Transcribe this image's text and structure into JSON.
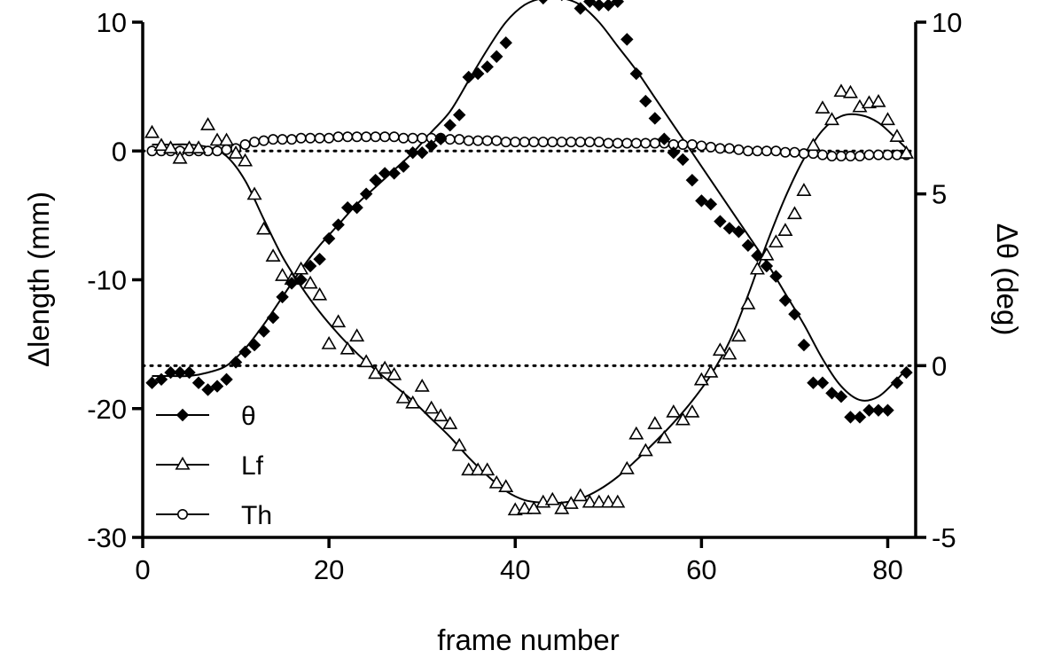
{
  "chart_data": {
    "type": "scatter",
    "title": "",
    "xlabel": "frame number",
    "ylabel_left": "Δlength (mm)",
    "ylabel_right": "Δθ (deg)",
    "xlim": [
      0,
      83
    ],
    "ylim_left": [
      -30,
      10
    ],
    "ylim_right": [
      -5,
      10
    ],
    "xticks": [
      "0",
      "20",
      "40",
      "60",
      "80"
    ],
    "yticks_left": [
      "10",
      "0",
      "-10",
      "-20",
      "-30"
    ],
    "yticks_right": [
      "10",
      "5",
      "0",
      "-5"
    ],
    "grid": false,
    "legend": {
      "position": "bottom-left",
      "entries": [
        "θ",
        "Lf",
        "Th"
      ]
    },
    "reference_lines": [
      {
        "axis": "left",
        "y": 0
      },
      {
        "axis": "right",
        "y": 0
      }
    ],
    "series": [
      {
        "name": "θ",
        "axis": "right",
        "marker": "diamond-filled",
        "x": [
          1,
          2,
          3,
          4,
          5,
          6,
          7,
          8,
          9,
          10,
          11,
          12,
          13,
          14,
          15,
          16,
          17,
          18,
          19,
          20,
          21,
          22,
          23,
          24,
          25,
          26,
          27,
          28,
          29,
          30,
          31,
          32,
          33,
          34,
          35,
          36,
          37,
          38,
          39,
          40,
          41,
          42,
          43,
          44,
          45,
          46,
          47,
          48,
          49,
          50,
          51,
          52,
          53,
          54,
          55,
          56,
          57,
          58,
          59,
          60,
          61,
          62,
          63,
          64,
          65,
          66,
          67,
          68,
          69,
          70,
          71,
          72,
          73,
          74,
          75,
          76,
          77,
          78,
          79,
          80,
          81,
          82
        ],
        "y": [
          -0.5,
          -0.4,
          -0.2,
          -0.2,
          -0.2,
          -0.5,
          -0.7,
          -0.6,
          -0.4,
          0.1,
          0.4,
          0.6,
          1.0,
          1.4,
          2.0,
          2.4,
          2.5,
          2.9,
          3.1,
          3.7,
          4.1,
          4.6,
          4.6,
          5.0,
          5.4,
          5.6,
          5.6,
          5.8,
          6.2,
          6.2,
          6.4,
          6.6,
          7.0,
          7.3,
          8.4,
          8.5,
          8.7,
          9.0,
          9.4,
          11.3,
          11.1,
          11.1,
          10.7,
          10.9,
          10.8,
          10.8,
          10.4,
          10.6,
          10.5,
          10.5,
          10.6,
          9.5,
          8.5,
          7.7,
          7.2,
          6.6,
          6.2,
          6.0,
          5.4,
          4.8,
          4.7,
          4.2,
          4.0,
          3.9,
          3.5,
          3.2,
          2.9,
          2.6,
          1.9,
          1.5,
          0.6,
          -0.5,
          -0.5,
          -0.8,
          -0.9,
          -1.5,
          -1.5,
          -1.3,
          -1.3,
          -1.3,
          -0.5,
          -0.2
        ]
      },
      {
        "name": "Lf",
        "axis": "left",
        "marker": "triangle-open",
        "x": [
          1,
          2,
          3,
          4,
          5,
          6,
          7,
          8,
          9,
          10,
          11,
          12,
          13,
          14,
          15,
          16,
          17,
          18,
          19,
          20,
          21,
          22,
          23,
          24,
          25,
          26,
          27,
          28,
          29,
          30,
          31,
          32,
          33,
          34,
          35,
          36,
          37,
          38,
          39,
          40,
          41,
          42,
          43,
          44,
          45,
          46,
          47,
          48,
          49,
          50,
          51,
          52,
          53,
          54,
          55,
          56,
          57,
          58,
          59,
          60,
          61,
          62,
          63,
          64,
          65,
          66,
          67,
          68,
          69,
          70,
          71,
          72,
          73,
          74,
          75,
          76,
          77,
          78,
          79,
          80,
          81,
          82
        ],
        "y": [
          1.4,
          0.4,
          0.2,
          -0.6,
          0.2,
          0.2,
          2.0,
          0.8,
          0.8,
          -0.2,
          -0.8,
          -3.4,
          -6.1,
          -8.2,
          -9.7,
          -10.0,
          -9.2,
          -10.3,
          -11.2,
          -15.0,
          -13.3,
          -15.4,
          -14.4,
          -16.4,
          -17.3,
          -16.9,
          -17.4,
          -19.2,
          -19.6,
          -18.3,
          -20.0,
          -20.6,
          -21.2,
          -22.9,
          -24.8,
          -24.8,
          -24.8,
          -25.8,
          -26.1,
          -27.9,
          -27.8,
          -27.8,
          -27.3,
          -27.1,
          -27.8,
          -27.4,
          -26.8,
          -27.3,
          -27.3,
          -27.3,
          -27.3,
          -24.7,
          -22.0,
          -23.3,
          -21.2,
          -22.3,
          -20.3,
          -20.9,
          -20.3,
          -17.8,
          -17.2,
          -15.5,
          -15.8,
          -14.4,
          -11.9,
          -9.2,
          -8.1,
          -7.1,
          -6.2,
          -4.9,
          -3.1,
          0.4,
          3.3,
          2.4,
          4.6,
          4.5,
          3.4,
          3.7,
          3.8,
          2.4,
          1.1,
          -0.2
        ]
      },
      {
        "name": "Th",
        "axis": "left",
        "marker": "circle-open",
        "x": [
          1,
          2,
          3,
          4,
          5,
          6,
          7,
          8,
          9,
          10,
          11,
          12,
          13,
          14,
          15,
          16,
          17,
          18,
          19,
          20,
          21,
          22,
          23,
          24,
          25,
          26,
          27,
          28,
          29,
          30,
          31,
          32,
          33,
          34,
          35,
          36,
          37,
          38,
          39,
          40,
          41,
          42,
          43,
          44,
          45,
          46,
          47,
          48,
          49,
          50,
          51,
          52,
          53,
          54,
          55,
          56,
          57,
          58,
          59,
          60,
          61,
          62,
          63,
          64,
          65,
          66,
          67,
          68,
          69,
          70,
          71,
          72,
          73,
          74,
          75,
          76,
          77,
          78,
          79,
          80,
          81,
          82
        ],
        "y": [
          0.0,
          0.0,
          0.0,
          0.0,
          0.0,
          0.0,
          0.0,
          0.0,
          0.1,
          0.2,
          0.5,
          0.7,
          0.8,
          0.9,
          0.9,
          0.9,
          1.0,
          1.0,
          1.0,
          1.0,
          1.1,
          1.1,
          1.1,
          1.1,
          1.1,
          1.1,
          1.1,
          1.0,
          1.0,
          1.0,
          1.0,
          1.0,
          0.9,
          0.9,
          0.8,
          0.8,
          0.8,
          0.8,
          0.7,
          0.7,
          0.7,
          0.7,
          0.7,
          0.7,
          0.7,
          0.7,
          0.7,
          0.7,
          0.7,
          0.6,
          0.6,
          0.6,
          0.6,
          0.6,
          0.6,
          0.6,
          0.5,
          0.5,
          0.5,
          0.4,
          0.3,
          0.2,
          0.2,
          0.1,
          0.0,
          0.0,
          0.0,
          0.0,
          -0.1,
          -0.1,
          -0.2,
          -0.2,
          -0.3,
          -0.4,
          -0.4,
          -0.4,
          -0.4,
          -0.3,
          -0.3,
          -0.3,
          -0.3,
          -0.3
        ]
      }
    ],
    "fits": [
      {
        "series": "θ",
        "axis": "right",
        "x": [
          1,
          3,
          5,
          7,
          9,
          11,
          13,
          15,
          17,
          19,
          21,
          23,
          25,
          27,
          29,
          31,
          33,
          35,
          37,
          39,
          41,
          43,
          45,
          47,
          49,
          51,
          53,
          55,
          57,
          59,
          61,
          63,
          65,
          67,
          69,
          71,
          73,
          75,
          77,
          79,
          81,
          82
        ],
        "y": [
          -0.3,
          -0.3,
          -0.3,
          -0.2,
          0.0,
          0.5,
          1.2,
          2.0,
          2.8,
          3.5,
          4.1,
          4.7,
          5.2,
          5.7,
          6.2,
          6.8,
          7.4,
          8.3,
          9.2,
          10.0,
          10.5,
          10.7,
          10.7,
          10.5,
          10.0,
          9.3,
          8.6,
          7.8,
          7.0,
          6.2,
          5.4,
          4.6,
          3.8,
          3.0,
          2.1,
          1.2,
          0.2,
          -0.6,
          -1.0,
          -0.9,
          -0.4,
          -0.1
        ]
      },
      {
        "series": "Lf",
        "axis": "left",
        "x": [
          1,
          3,
          5,
          7,
          9,
          11,
          13,
          15,
          17,
          19,
          21,
          23,
          25,
          27,
          29,
          31,
          33,
          35,
          37,
          39,
          41,
          43,
          45,
          47,
          49,
          51,
          53,
          55,
          57,
          59,
          61,
          63,
          65,
          67,
          69,
          71,
          73,
          75,
          77,
          79,
          81,
          82
        ],
        "y": [
          0.5,
          0.5,
          0.5,
          0.3,
          -0.4,
          -2.3,
          -5.3,
          -8.2,
          -10.5,
          -12.5,
          -14.2,
          -15.7,
          -17.0,
          -18.2,
          -19.4,
          -20.8,
          -22.2,
          -23.8,
          -25.2,
          -26.4,
          -27.1,
          -27.3,
          -27.3,
          -27.0,
          -26.3,
          -25.3,
          -24.0,
          -22.6,
          -21.1,
          -19.4,
          -17.4,
          -14.8,
          -11.2,
          -7.2,
          -3.6,
          -0.6,
          1.6,
          2.7,
          2.8,
          2.2,
          0.9,
          0.2
        ]
      }
    ]
  }
}
